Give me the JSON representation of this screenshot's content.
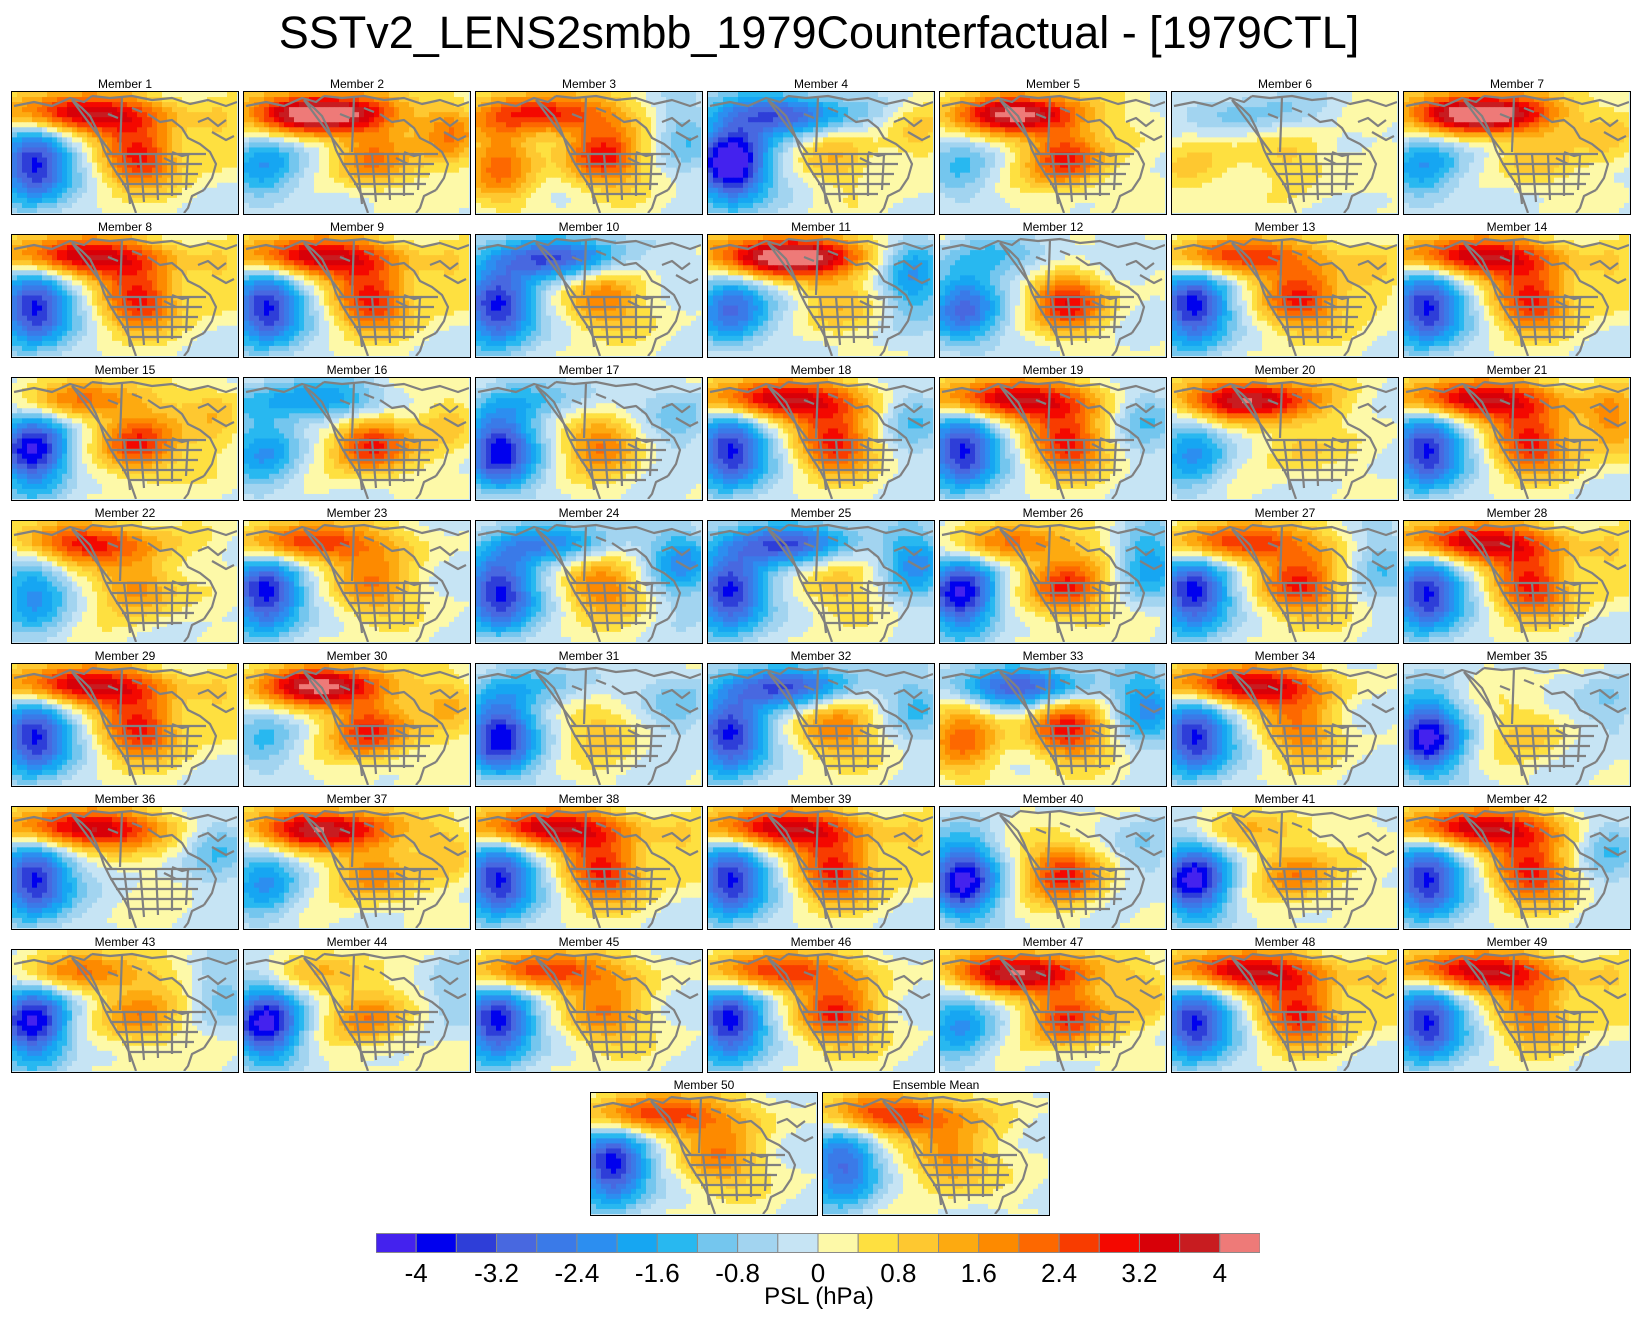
{
  "title": "SSTv2_LENS2smbb_1979Counterfactual - [1979CTL]",
  "colorbar": {
    "units_label": "PSL (hPa)",
    "tick_labels": [
      "-4",
      "-3.2",
      "-2.4",
      "-1.6",
      "-0.8",
      "0",
      "0.8",
      "1.6",
      "2.4",
      "3.2",
      "4"
    ],
    "bin_count": 22,
    "colors": [
      "#4422ee",
      "#0000ee",
      "#2e3ed8",
      "#4868e0",
      "#3a7ae8",
      "#2c8ef0",
      "#16a6f2",
      "#28b8f0",
      "#74c6ee",
      "#a2d4f0",
      "#c6e4f4",
      "#fdf9a8",
      "#fee040",
      "#fec830",
      "#fdaa10",
      "#fd8a00",
      "#fd6800",
      "#f83c00",
      "#f40800",
      "#d80008",
      "#c81c20",
      "#ee7a78"
    ]
  },
  "panels": [
    {
      "label": "Member 1",
      "pattern": [
        4,
        -4,
        3,
        1
      ]
    },
    {
      "label": "Member 2",
      "pattern": [
        5,
        -2,
        2,
        2
      ]
    },
    {
      "label": "Member 3",
      "pattern": [
        3,
        2,
        3,
        -1
      ]
    },
    {
      "label": "Member 4",
      "pattern": [
        -3,
        -5,
        1,
        1
      ]
    },
    {
      "label": "Member 5",
      "pattern": [
        4,
        -1,
        3,
        0
      ]
    },
    {
      "label": "Member 6",
      "pattern": [
        -1,
        1,
        1,
        0
      ]
    },
    {
      "label": "Member 7",
      "pattern": [
        5,
        -2,
        1,
        1
      ]
    },
    {
      "label": "Member 8",
      "pattern": [
        4,
        -4,
        3,
        1
      ]
    },
    {
      "label": "Member 9",
      "pattern": [
        4,
        -4,
        3,
        1
      ]
    },
    {
      "label": "Member 10",
      "pattern": [
        -3,
        -4,
        2,
        0
      ]
    },
    {
      "label": "Member 11",
      "pattern": [
        5,
        -3,
        1,
        -2
      ]
    },
    {
      "label": "Member 12",
      "pattern": [
        -1,
        -3,
        3,
        0
      ]
    },
    {
      "label": "Member 13",
      "pattern": [
        3,
        -4,
        3,
        1
      ]
    },
    {
      "label": "Member 14",
      "pattern": [
        4,
        -4,
        3,
        1
      ]
    },
    {
      "label": "Member 15",
      "pattern": [
        2,
        -4,
        3,
        1
      ]
    },
    {
      "label": "Member 16",
      "pattern": [
        -2,
        -2,
        3,
        1
      ]
    },
    {
      "label": "Member 17",
      "pattern": [
        -1,
        -4,
        2,
        -1
      ]
    },
    {
      "label": "Member 18",
      "pattern": [
        4,
        -4,
        3,
        -1
      ]
    },
    {
      "label": "Member 19",
      "pattern": [
        4,
        -4,
        3,
        -1
      ]
    },
    {
      "label": "Member 20",
      "pattern": [
        4,
        -2,
        1,
        0
      ]
    },
    {
      "label": "Member 21",
      "pattern": [
        4,
        -4,
        3,
        2
      ]
    },
    {
      "label": "Member 22",
      "pattern": [
        3,
        -2,
        2,
        0
      ]
    },
    {
      "label": "Member 23",
      "pattern": [
        3,
        -4,
        2,
        0
      ]
    },
    {
      "label": "Member 24",
      "pattern": [
        -2,
        -4,
        2,
        -2
      ]
    },
    {
      "label": "Member 25",
      "pattern": [
        -3,
        -4,
        1,
        -2
      ]
    },
    {
      "label": "Member 26",
      "pattern": [
        2,
        -4,
        3,
        -2
      ]
    },
    {
      "label": "Member 27",
      "pattern": [
        3,
        -4,
        3,
        -1
      ]
    },
    {
      "label": "Member 28",
      "pattern": [
        4,
        -4,
        3,
        1
      ]
    },
    {
      "label": "Member 29",
      "pattern": [
        4,
        -4,
        3,
        1
      ]
    },
    {
      "label": "Member 30",
      "pattern": [
        4,
        -1,
        3,
        1
      ]
    },
    {
      "label": "Member 31",
      "pattern": [
        -1,
        -4,
        1,
        -1
      ]
    },
    {
      "label": "Member 32",
      "pattern": [
        -3,
        -4,
        2,
        -1
      ]
    },
    {
      "label": "Member 33",
      "pattern": [
        -3,
        2,
        3,
        -2
      ]
    },
    {
      "label": "Member 34",
      "pattern": [
        4,
        -4,
        2,
        0
      ]
    },
    {
      "label": "Member 35",
      "pattern": [
        0,
        -4,
        1,
        -1
      ]
    },
    {
      "label": "Member 36",
      "pattern": [
        4,
        -4,
        0,
        -1
      ]
    },
    {
      "label": "Member 37",
      "pattern": [
        4,
        -2,
        2,
        1
      ]
    },
    {
      "label": "Member 38",
      "pattern": [
        4,
        -4,
        3,
        1
      ]
    },
    {
      "label": "Member 39",
      "pattern": [
        4,
        -4,
        3,
        1
      ]
    },
    {
      "label": "Member 40",
      "pattern": [
        0,
        -4,
        3,
        -1
      ]
    },
    {
      "label": "Member 41",
      "pattern": [
        1,
        -4,
        2,
        0
      ]
    },
    {
      "label": "Member 42",
      "pattern": [
        4,
        -4,
        3,
        -1
      ]
    },
    {
      "label": "Member 43",
      "pattern": [
        2,
        -4,
        2,
        -1
      ]
    },
    {
      "label": "Member 44",
      "pattern": [
        1,
        -4,
        2,
        -1
      ]
    },
    {
      "label": "Member 45",
      "pattern": [
        3,
        -4,
        2,
        0
      ]
    },
    {
      "label": "Member 46",
      "pattern": [
        3,
        -4,
        3,
        0
      ]
    },
    {
      "label": "Member 47",
      "pattern": [
        4,
        -2,
        3,
        1
      ]
    },
    {
      "label": "Member 48",
      "pattern": [
        4,
        -4,
        3,
        1
      ]
    },
    {
      "label": "Member 49",
      "pattern": [
        4,
        -4,
        2,
        1
      ]
    },
    {
      "label": "Member 50",
      "pattern": [
        3,
        -4,
        2,
        0
      ]
    },
    {
      "label": "Ensemble Mean",
      "pattern": [
        3,
        -3,
        2,
        0
      ]
    }
  ]
}
